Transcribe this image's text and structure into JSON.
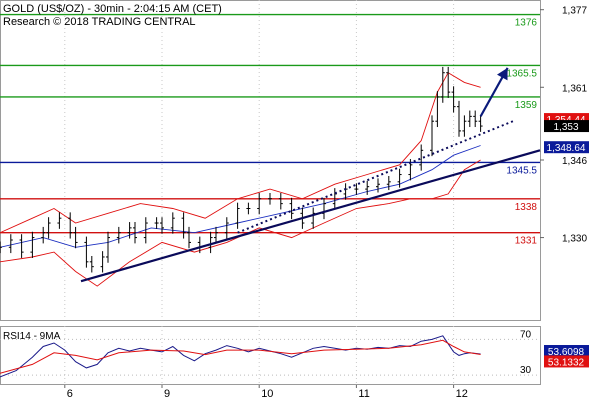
{
  "chart_data": {
    "type": "line",
    "title": "GOLD (US$/OZ) - 30min - 2:04:15 AM (CET)",
    "subtitle": "Research © 2018 TRADING CENTRAL",
    "colors": {
      "price": "#000000",
      "bollinger": "#e01010",
      "moving_average": "#1c2fc0",
      "resistance": "#1a9a1a",
      "pivot": "#0a1a9a",
      "support": "#d01010",
      "trendline": "#0a0a5a",
      "arrow": "#0a1a7a",
      "rsi": "#1a1a8a",
      "rsi_ma": "#e01010"
    },
    "x_ticks": [
      {
        "label": "6",
        "date": "2018-03-06"
      },
      {
        "label": "9",
        "date": "2018-03-09"
      },
      {
        "label": "10",
        "date": "2018-03-10"
      },
      {
        "label": "11",
        "date": "2018-03-11"
      },
      {
        "label": "12",
        "date": "2018-03-12"
      }
    ],
    "y_ticks": [
      "1,377",
      "1,361",
      "1,346",
      "1,330"
    ],
    "y_tick_values": [
      1377,
      1361,
      1346,
      1330
    ],
    "ylim": [
      1313,
      1379
    ],
    "levels": [
      {
        "label": "1376",
        "value": 1376,
        "role": "resistance"
      },
      {
        "label": "1365.5",
        "value": 1365.5,
        "role": "resistance"
      },
      {
        "label": "1359",
        "value": 1359,
        "role": "resistance"
      },
      {
        "label": "1345.5",
        "value": 1345.5,
        "role": "pivot"
      },
      {
        "label": "1338",
        "value": 1338,
        "role": "support"
      },
      {
        "label": "1331",
        "value": 1331,
        "role": "support"
      }
    ],
    "price_badges": [
      {
        "label": "1,354.44",
        "value": 1354.44,
        "style": "red"
      },
      {
        "label": "1,353",
        "value": 1353,
        "style": "black"
      },
      {
        "label": "1,348.64",
        "value": 1348.64,
        "style": "blue"
      }
    ],
    "price_series": [
      {
        "x": 0,
        "y": 1328
      },
      {
        "x": 2,
        "y": 1329.5
      },
      {
        "x": 4,
        "y": 1327
      },
      {
        "x": 6,
        "y": 1330
      },
      {
        "x": 8,
        "y": 1331
      },
      {
        "x": 9,
        "y": 1333
      },
      {
        "x": 11,
        "y": 1334
      },
      {
        "x": 13,
        "y": 1331
      },
      {
        "x": 14,
        "y": 1329
      },
      {
        "x": 16,
        "y": 1325
      },
      {
        "x": 17,
        "y": 1324
      },
      {
        "x": 19,
        "y": 1326
      },
      {
        "x": 20,
        "y": 1330
      },
      {
        "x": 22,
        "y": 1331
      },
      {
        "x": 24,
        "y": 1332
      },
      {
        "x": 25,
        "y": 1330
      },
      {
        "x": 27,
        "y": 1333
      },
      {
        "x": 29,
        "y": 1333
      },
      {
        "x": 30,
        "y": 1332
      },
      {
        "x": 32,
        "y": 1334
      },
      {
        "x": 34,
        "y": 1331
      },
      {
        "x": 35,
        "y": 1329
      },
      {
        "x": 37,
        "y": 1328
      },
      {
        "x": 39,
        "y": 1330
      },
      {
        "x": 40,
        "y": 1331
      },
      {
        "x": 42,
        "y": 1333
      },
      {
        "x": 44,
        "y": 1336
      },
      {
        "x": 46,
        "y": 1336
      },
      {
        "x": 48,
        "y": 1338
      },
      {
        "x": 50,
        "y": 1338
      },
      {
        "x": 52,
        "y": 1337
      },
      {
        "x": 54,
        "y": 1335
      },
      {
        "x": 56,
        "y": 1333
      },
      {
        "x": 58,
        "y": 1335
      },
      {
        "x": 60,
        "y": 1337
      },
      {
        "x": 62,
        "y": 1339
      },
      {
        "x": 64,
        "y": 1340
      },
      {
        "x": 66,
        "y": 1340
      },
      {
        "x": 68,
        "y": 1340.5
      },
      {
        "x": 70,
        "y": 1341
      },
      {
        "x": 72,
        "y": 1341.5
      },
      {
        "x": 74,
        "y": 1343
      },
      {
        "x": 76,
        "y": 1345
      },
      {
        "x": 78,
        "y": 1348
      },
      {
        "x": 80,
        "y": 1354
      },
      {
        "x": 81,
        "y": 1359
      },
      {
        "x": 82,
        "y": 1364
      },
      {
        "x": 83,
        "y": 1360
      },
      {
        "x": 84,
        "y": 1357
      },
      {
        "x": 85,
        "y": 1352
      },
      {
        "x": 86,
        "y": 1354
      },
      {
        "x": 87,
        "y": 1355
      },
      {
        "x": 88,
        "y": 1354
      },
      {
        "x": 89,
        "y": 1353
      }
    ],
    "bollinger_upper": [
      {
        "x": 0,
        "y": 1331
      },
      {
        "x": 6,
        "y": 1334
      },
      {
        "x": 10,
        "y": 1336
      },
      {
        "x": 14,
        "y": 1333
      },
      {
        "x": 20,
        "y": 1335
      },
      {
        "x": 26,
        "y": 1337
      },
      {
        "x": 32,
        "y": 1336
      },
      {
        "x": 38,
        "y": 1334
      },
      {
        "x": 44,
        "y": 1338
      },
      {
        "x": 50,
        "y": 1340
      },
      {
        "x": 56,
        "y": 1338
      },
      {
        "x": 62,
        "y": 1341
      },
      {
        "x": 68,
        "y": 1343
      },
      {
        "x": 74,
        "y": 1345
      },
      {
        "x": 78,
        "y": 1350
      },
      {
        "x": 81,
        "y": 1360
      },
      {
        "x": 83,
        "y": 1364
      },
      {
        "x": 86,
        "y": 1362
      },
      {
        "x": 89,
        "y": 1361
      }
    ],
    "bollinger_lower": [
      {
        "x": 0,
        "y": 1325
      },
      {
        "x": 6,
        "y": 1326
      },
      {
        "x": 10,
        "y": 1327
      },
      {
        "x": 14,
        "y": 1323
      },
      {
        "x": 18,
        "y": 1320
      },
      {
        "x": 24,
        "y": 1325
      },
      {
        "x": 30,
        "y": 1329
      },
      {
        "x": 36,
        "y": 1327
      },
      {
        "x": 42,
        "y": 1329
      },
      {
        "x": 48,
        "y": 1332
      },
      {
        "x": 54,
        "y": 1330
      },
      {
        "x": 60,
        "y": 1333
      },
      {
        "x": 66,
        "y": 1336
      },
      {
        "x": 72,
        "y": 1337
      },
      {
        "x": 76,
        "y": 1338
      },
      {
        "x": 80,
        "y": 1338
      },
      {
        "x": 83,
        "y": 1339
      },
      {
        "x": 86,
        "y": 1344
      },
      {
        "x": 89,
        "y": 1346
      }
    ],
    "moving_average": [
      {
        "x": 0,
        "y": 1328
      },
      {
        "x": 8,
        "y": 1330
      },
      {
        "x": 14,
        "y": 1328
      },
      {
        "x": 20,
        "y": 1329
      },
      {
        "x": 28,
        "y": 1332
      },
      {
        "x": 36,
        "y": 1331
      },
      {
        "x": 44,
        "y": 1333
      },
      {
        "x": 52,
        "y": 1335
      },
      {
        "x": 60,
        "y": 1337
      },
      {
        "x": 68,
        "y": 1339.5
      },
      {
        "x": 74,
        "y": 1341
      },
      {
        "x": 80,
        "y": 1344
      },
      {
        "x": 84,
        "y": 1347
      },
      {
        "x": 89,
        "y": 1349
      }
    ],
    "trendline": [
      {
        "x": 15,
        "y": 1321
      },
      {
        "x": 100,
        "y": 1348
      }
    ],
    "dotted_trendline": [
      {
        "x": 44,
        "y": 1331
      },
      {
        "x": 95,
        "y": 1354
      }
    ],
    "arrow": [
      {
        "x": 89,
        "y": 1355
      },
      {
        "x": 94,
        "y": 1365
      }
    ],
    "rsi": {
      "label": "RSI14 - 9MA",
      "ylim": [
        20,
        85
      ],
      "y_ticks": [
        "70",
        "30"
      ],
      "y_tick_values": [
        70,
        30
      ],
      "badges": [
        {
          "label": "53.6098",
          "value": 53.6098,
          "style": "blue"
        },
        {
          "label": "53.1332",
          "value": 53.1332,
          "style": "red"
        }
      ],
      "values": [
        {
          "x": 0,
          "y": 28
        },
        {
          "x": 3,
          "y": 35
        },
        {
          "x": 6,
          "y": 50
        },
        {
          "x": 8,
          "y": 62
        },
        {
          "x": 10,
          "y": 66
        },
        {
          "x": 12,
          "y": 58
        },
        {
          "x": 14,
          "y": 45
        },
        {
          "x": 16,
          "y": 38
        },
        {
          "x": 18,
          "y": 42
        },
        {
          "x": 20,
          "y": 55
        },
        {
          "x": 22,
          "y": 60
        },
        {
          "x": 24,
          "y": 57
        },
        {
          "x": 26,
          "y": 60
        },
        {
          "x": 28,
          "y": 58
        },
        {
          "x": 30,
          "y": 56
        },
        {
          "x": 32,
          "y": 62
        },
        {
          "x": 34,
          "y": 52
        },
        {
          "x": 36,
          "y": 46
        },
        {
          "x": 38,
          "y": 54
        },
        {
          "x": 40,
          "y": 58
        },
        {
          "x": 42,
          "y": 63
        },
        {
          "x": 44,
          "y": 60
        },
        {
          "x": 46,
          "y": 56
        },
        {
          "x": 48,
          "y": 60
        },
        {
          "x": 50,
          "y": 57
        },
        {
          "x": 52,
          "y": 54
        },
        {
          "x": 54,
          "y": 50
        },
        {
          "x": 56,
          "y": 55
        },
        {
          "x": 58,
          "y": 60
        },
        {
          "x": 60,
          "y": 62
        },
        {
          "x": 62,
          "y": 60
        },
        {
          "x": 64,
          "y": 58
        },
        {
          "x": 66,
          "y": 60
        },
        {
          "x": 68,
          "y": 59
        },
        {
          "x": 70,
          "y": 61
        },
        {
          "x": 72,
          "y": 60
        },
        {
          "x": 74,
          "y": 63
        },
        {
          "x": 76,
          "y": 62
        },
        {
          "x": 78,
          "y": 68
        },
        {
          "x": 80,
          "y": 70
        },
        {
          "x": 82,
          "y": 74
        },
        {
          "x": 83,
          "y": 65
        },
        {
          "x": 84,
          "y": 56
        },
        {
          "x": 85,
          "y": 52
        },
        {
          "x": 86,
          "y": 54
        },
        {
          "x": 87,
          "y": 55
        },
        {
          "x": 89,
          "y": 53.6
        }
      ],
      "ma": [
        {
          "x": 0,
          "y": 32
        },
        {
          "x": 6,
          "y": 42
        },
        {
          "x": 10,
          "y": 55
        },
        {
          "x": 14,
          "y": 52
        },
        {
          "x": 18,
          "y": 47
        },
        {
          "x": 22,
          "y": 55
        },
        {
          "x": 28,
          "y": 58
        },
        {
          "x": 34,
          "y": 57
        },
        {
          "x": 38,
          "y": 53
        },
        {
          "x": 42,
          "y": 58
        },
        {
          "x": 48,
          "y": 58
        },
        {
          "x": 54,
          "y": 54
        },
        {
          "x": 60,
          "y": 58
        },
        {
          "x": 66,
          "y": 59
        },
        {
          "x": 72,
          "y": 60
        },
        {
          "x": 78,
          "y": 64
        },
        {
          "x": 82,
          "y": 69
        },
        {
          "x": 84,
          "y": 62
        },
        {
          "x": 86,
          "y": 56
        },
        {
          "x": 89,
          "y": 53.1
        }
      ]
    }
  }
}
